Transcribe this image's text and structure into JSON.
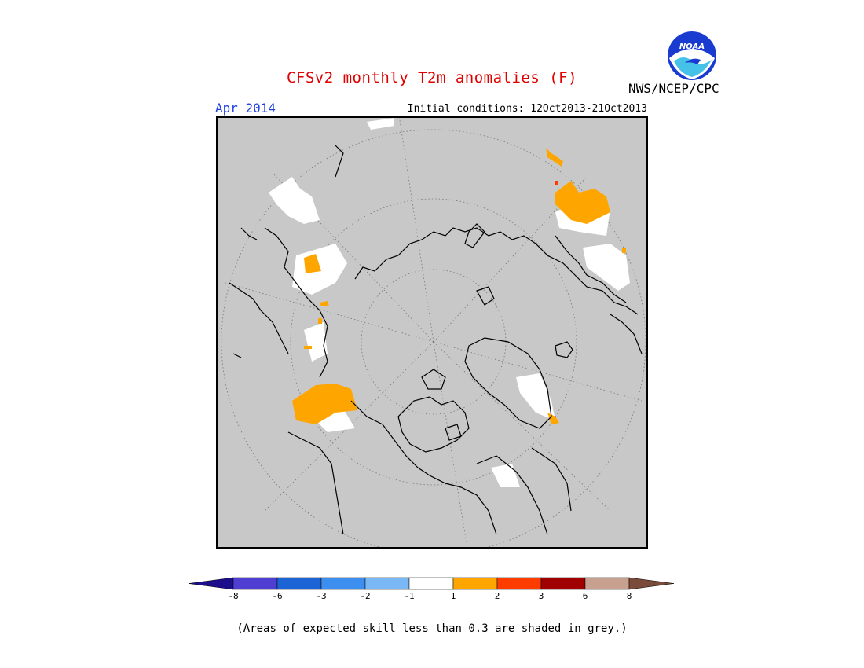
{
  "header": {
    "title": "CFSv2 monthly T2m anomalies (F)",
    "agency": "NWS/NCEP/CPC",
    "logo_text": "NOAA",
    "month": "Apr 2014",
    "initial_conditions": "Initial conditions: 12Oct2013-21Oct2013"
  },
  "legend": {
    "ticks": [
      "-8",
      "-6",
      "-3",
      "-2",
      "-1",
      "1",
      "2",
      "3",
      "6",
      "8"
    ],
    "colors": [
      "#1d0f8c",
      "#4e3fd2",
      "#1c64d6",
      "#3d8fef",
      "#79b8f5",
      "#ffffff",
      "#ffa500",
      "#ff3c00",
      "#a00000",
      "#c8a090",
      "#7a4a3a"
    ]
  },
  "colors": {
    "title": "#e00000",
    "month": "#1d3fe0",
    "grey_mask": "#c8c8c8",
    "positive_anomaly": "#ffa500",
    "neutral": "#ffffff"
  },
  "footnote": "(Areas of expected skill less than 0.3 are shaded in grey.)"
}
